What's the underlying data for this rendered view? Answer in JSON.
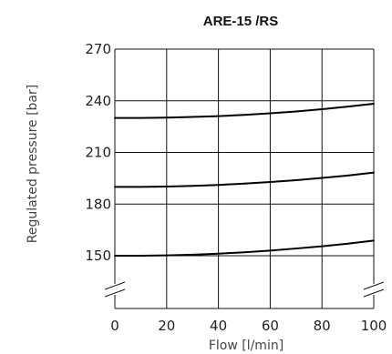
{
  "chart_data": {
    "type": "line",
    "title": "ARE-15 /RS",
    "xlabel": "Flow [l/min]",
    "ylabel": "Regulated pressure [bar]",
    "xlim": [
      0,
      100
    ],
    "ylim": [
      150,
      270
    ],
    "x_ticks": [
      0,
      20,
      40,
      60,
      80,
      100
    ],
    "y_ticks": [
      150,
      180,
      210,
      240,
      270
    ],
    "x_tick_labels": [
      "0",
      "20",
      "40",
      "60",
      "80",
      "100"
    ],
    "y_tick_labels": [
      "150",
      "180",
      "210",
      "240",
      "270"
    ],
    "y_axis_break": true,
    "grid": true,
    "series": [
      {
        "x": [
          0,
          10,
          20,
          30,
          40,
          50,
          60,
          70,
          80,
          90,
          100
        ],
        "y": [
          230,
          230,
          230.2,
          230.6,
          231.1,
          231.8,
          232.7,
          233.8,
          235.1,
          236.6,
          238.3
        ]
      },
      {
        "x": [
          0,
          10,
          20,
          30,
          40,
          50,
          60,
          70,
          80,
          90,
          100
        ],
        "y": [
          190,
          190,
          190.2,
          190.6,
          191.1,
          191.9,
          192.8,
          193.9,
          195.2,
          196.6,
          198.3
        ]
      },
      {
        "x": [
          0,
          10,
          20,
          30,
          40,
          50,
          60,
          70,
          80,
          90,
          100
        ],
        "y": [
          150,
          150,
          150.2,
          150.6,
          151.2,
          152,
          153,
          154.2,
          155.5,
          157,
          158.8
        ]
      }
    ]
  },
  "colors": {
    "grid": "#111111",
    "curves": "#000000"
  }
}
